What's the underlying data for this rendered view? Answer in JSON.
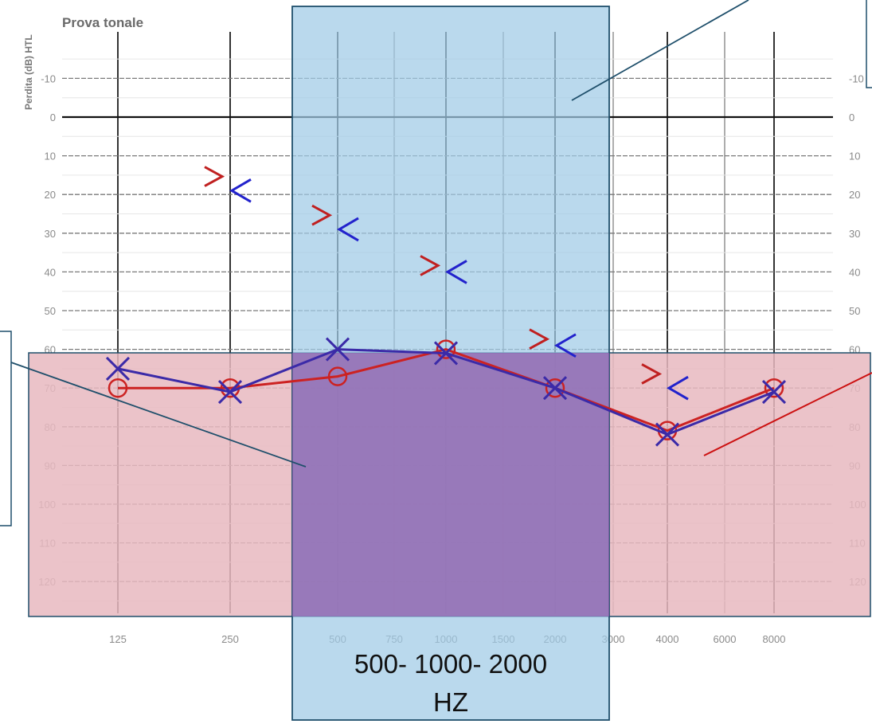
{
  "chart_data": {
    "type": "line",
    "title": "Prova tonale",
    "ylabel": "Perdita (dB) HTL",
    "xlabel": "",
    "x_ticks": [
      "125",
      "250",
      "500",
      "750",
      "1000",
      "1500",
      "2000",
      "3000",
      "4000",
      "6000",
      "8000"
    ],
    "y_ticks_left": [
      "-10",
      "0",
      "10",
      "20",
      "30",
      "40",
      "50",
      "60",
      "70",
      "80",
      "90",
      "100",
      "110",
      "120"
    ],
    "y_ticks_right": [
      "-10",
      "0",
      "10",
      "20",
      "30",
      "40",
      "50",
      "60",
      "70",
      "80",
      "90",
      "100",
      "110",
      "120"
    ],
    "ylim": [
      -20,
      130
    ],
    "y_inverted": true,
    "grid": true,
    "series": [
      {
        "marker": "circle",
        "color": "#cc2222",
        "x": [
          "125",
          "250",
          "500",
          "1000",
          "2000",
          "4000",
          "8000"
        ],
        "values": [
          70,
          70,
          67,
          60,
          70,
          81,
          70
        ]
      },
      {
        "marker": "x",
        "color": "#3b2aa8",
        "x": [
          "125",
          "250",
          "500",
          "1000",
          "2000",
          "4000",
          "8000"
        ],
        "values": [
          65,
          71,
          60,
          61,
          70,
          82,
          71
        ]
      },
      {
        "marker": ">",
        "color": "#c02020",
        "x": [
          "250",
          "500",
          "1000",
          "2000",
          "4000"
        ],
        "values": [
          17,
          27,
          40,
          59,
          68
        ]
      },
      {
        "marker": "<",
        "color": "#2222cc",
        "x": [
          "250",
          "500",
          "1000",
          "2000",
          "4000"
        ],
        "values": [
          19,
          29,
          40,
          59,
          70
        ]
      }
    ],
    "highlights": [
      {
        "kind": "frequency-band",
        "from": "500",
        "to": "2000",
        "color": "#7fb8dc"
      },
      {
        "kind": "loss-band",
        "from": 60,
        "to": 128,
        "color": "#d99aa2"
      }
    ],
    "annotation": "500-  1000-  2000\nHZ"
  },
  "colors": {
    "band_blue": "#9fcbe6",
    "band_pink": "#e8b8bf",
    "frame": "#1f4f6b",
    "leader_red": "#cc1111"
  }
}
